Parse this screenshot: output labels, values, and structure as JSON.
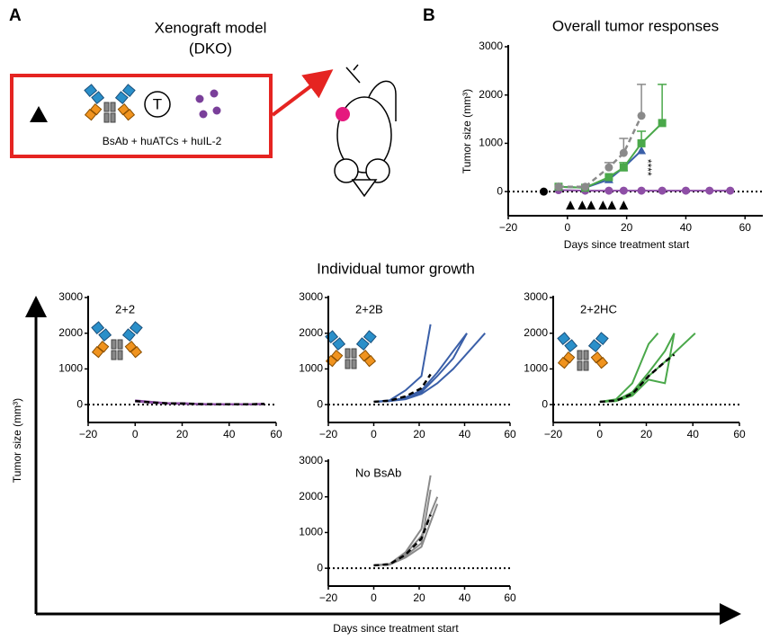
{
  "panel_a": {
    "letter": "A",
    "title": "Xenograft model",
    "subtitle": "(DKO)",
    "cell_label": "T",
    "treatment": "BsAb + huATCs + huIL-2"
  },
  "panel_b": {
    "letter": "B"
  },
  "individual": {
    "title": "Individual tumor growth",
    "ylabel": "Tumor size (mm³)",
    "xlabel": "Days since treatment start"
  },
  "chart_data": [
    {
      "type": "line",
      "title": "Overall tumor responses",
      "xlabel": "Days since treatment start",
      "ylabel": "Tumor size (mm³)",
      "xlim": [
        -20,
        66
      ],
      "ylim": [
        -500,
        3000
      ],
      "xticks": [
        {
          "value": -20,
          "label": "−20"
        },
        0,
        20,
        40,
        60
      ],
      "yticks": [
        0,
        1000,
        2000,
        3000
      ],
      "annotation": "****",
      "treatment_days": [
        1,
        5,
        8,
        12,
        15,
        19
      ],
      "series": [
        {
          "color": "#8e4fa6",
          "marker": "circle",
          "x": [
            -3,
            6,
            14,
            19,
            25,
            32,
            40,
            48,
            55
          ],
          "values": [
            30,
            20,
            20,
            20,
            20,
            20,
            20,
            20,
            20
          ]
        },
        {
          "color": "#3a5fa8",
          "marker": "triangle",
          "x": [
            -3,
            6,
            14,
            19,
            25
          ],
          "values": [
            100,
            80,
            250,
            500,
            850
          ]
        },
        {
          "color": "#4aa84a",
          "marker": "square",
          "x": [
            -3,
            6,
            14,
            19,
            25,
            32
          ],
          "values": [
            100,
            80,
            300,
            500,
            1000,
            1420
          ],
          "errors": [
            null,
            null,
            null,
            100,
            250,
            800
          ]
        },
        {
          "color": "#8a8a8a",
          "marker": "circle",
          "dash": true,
          "x": [
            -3,
            6,
            14,
            19,
            25
          ],
          "values": [
            100,
            100,
            500,
            800,
            1570
          ],
          "errors": [
            null,
            null,
            100,
            300,
            650
          ]
        },
        {
          "color": "#000000",
          "marker": "circle",
          "x": [
            -8
          ],
          "values": [
            0
          ]
        }
      ]
    },
    {
      "type": "line",
      "label": "2+2",
      "color": "#8e4fa6",
      "xlim": [
        -20,
        60
      ],
      "ylim": [
        -500,
        3000
      ],
      "xticks": [
        {
          "value": -20,
          "label": "−20"
        },
        0,
        20,
        40,
        60
      ],
      "yticks": [
        0,
        1000,
        2000,
        3000
      ],
      "series": [
        {
          "color": "#8e4fa6",
          "x": [
            0,
            7,
            14,
            21,
            28,
            35,
            42,
            49,
            55
          ],
          "values": [
            120,
            80,
            40,
            30,
            20,
            10,
            10,
            10,
            20
          ]
        },
        {
          "color": "#8e4fa6",
          "x": [
            0,
            7,
            14,
            21,
            28,
            35,
            42,
            49,
            55
          ],
          "values": [
            90,
            60,
            30,
            20,
            10,
            10,
            10,
            10,
            10
          ]
        },
        {
          "color": "#8e4fa6",
          "x": [
            0,
            7,
            14,
            21,
            28,
            35,
            42,
            49,
            55
          ],
          "values": [
            100,
            50,
            40,
            40,
            10,
            10,
            10,
            10,
            30
          ]
        },
        {
          "color": "#000000",
          "dash": true,
          "x": [
            0,
            7,
            14,
            21,
            28,
            35,
            42,
            49,
            55
          ],
          "values": [
            100,
            60,
            35,
            30,
            15,
            10,
            10,
            10,
            20
          ]
        }
      ]
    },
    {
      "type": "line",
      "label": "2+2B",
      "color": "#3a5fa8",
      "xlim": [
        -20,
        60
      ],
      "ylim": [
        -500,
        3000
      ],
      "xticks": [
        {
          "value": -20,
          "label": "−20"
        },
        0,
        20,
        40,
        60
      ],
      "yticks": [
        0,
        1000,
        2000,
        3000
      ],
      "series": [
        {
          "color": "#3a5fa8",
          "x": [
            0,
            7,
            14,
            21,
            25
          ],
          "values": [
            80,
            120,
            400,
            800,
            2250
          ]
        },
        {
          "color": "#3a5fa8",
          "x": [
            0,
            7,
            14,
            21,
            28,
            35,
            41
          ],
          "values": [
            80,
            100,
            200,
            400,
            900,
            1500,
            2000
          ]
        },
        {
          "color": "#3a5fa8",
          "x": [
            0,
            7,
            14,
            21,
            28,
            35,
            49
          ],
          "values": [
            80,
            100,
            150,
            300,
            600,
            1000,
            2000
          ]
        },
        {
          "color": "#3a5fa8",
          "x": [
            0,
            7,
            14,
            21,
            28,
            35,
            41
          ],
          "values": [
            80,
            100,
            180,
            350,
            800,
            1300,
            2000
          ]
        },
        {
          "color": "#000000",
          "dash": true,
          "x": [
            0,
            7,
            14,
            21,
            25
          ],
          "values": [
            80,
            110,
            230,
            460,
            850
          ]
        }
      ]
    },
    {
      "type": "line",
      "label": "2+2HC",
      "color": "#4aa84a",
      "xlim": [
        -20,
        60
      ],
      "ylim": [
        -500,
        3000
      ],
      "xticks": [
        {
          "value": -20,
          "label": "−20"
        },
        0,
        20,
        40,
        60
      ],
      "yticks": [
        0,
        1000,
        2000,
        3000
      ],
      "series": [
        {
          "color": "#4aa84a",
          "x": [
            0,
            7,
            14,
            21,
            25
          ],
          "values": [
            80,
            150,
            600,
            1700,
            2000
          ]
        },
        {
          "color": "#4aa84a",
          "x": [
            0,
            7,
            14,
            21,
            28,
            32
          ],
          "values": [
            80,
            120,
            350,
            900,
            1500,
            2000
          ]
        },
        {
          "color": "#4aa84a",
          "x": [
            0,
            7,
            14,
            21,
            28,
            32
          ],
          "values": [
            80,
            100,
            250,
            700,
            600,
            2000
          ]
        },
        {
          "color": "#4aa84a",
          "x": [
            0,
            7,
            14,
            21,
            28,
            41
          ],
          "values": [
            80,
            100,
            300,
            800,
            1200,
            2000
          ]
        },
        {
          "color": "#000000",
          "dash": true,
          "x": [
            0,
            7,
            14,
            21,
            28,
            32
          ],
          "values": [
            80,
            110,
            300,
            800,
            1200,
            1400
          ]
        }
      ]
    },
    {
      "type": "line",
      "label": "No BsAb",
      "color": "#a0a0a0",
      "xlim": [
        -20,
        60
      ],
      "ylim": [
        -500,
        3000
      ],
      "xticks": [
        {
          "value": -20,
          "label": "−20"
        },
        0,
        20,
        40,
        60
      ],
      "yticks": [
        0,
        1000,
        2000,
        3000
      ],
      "series": [
        {
          "color": "#8a8a8a",
          "x": [
            0,
            7,
            14,
            21,
            25
          ],
          "values": [
            80,
            120,
            450,
            1100,
            2600
          ]
        },
        {
          "color": "#8a8a8a",
          "x": [
            0,
            7,
            14,
            21,
            28
          ],
          "values": [
            80,
            120,
            400,
            900,
            2000
          ]
        },
        {
          "color": "#8a8a8a",
          "x": [
            0,
            7,
            14,
            21,
            25
          ],
          "values": [
            80,
            100,
            350,
            700,
            2200
          ]
        },
        {
          "color": "#8a8a8a",
          "x": [
            0,
            7,
            14,
            21,
            28
          ],
          "values": [
            80,
            100,
            300,
            600,
            1800
          ]
        },
        {
          "color": "#000000",
          "dash": true,
          "x": [
            0,
            7,
            14,
            21,
            25
          ],
          "values": [
            80,
            110,
            380,
            830,
            1500
          ]
        }
      ]
    }
  ]
}
